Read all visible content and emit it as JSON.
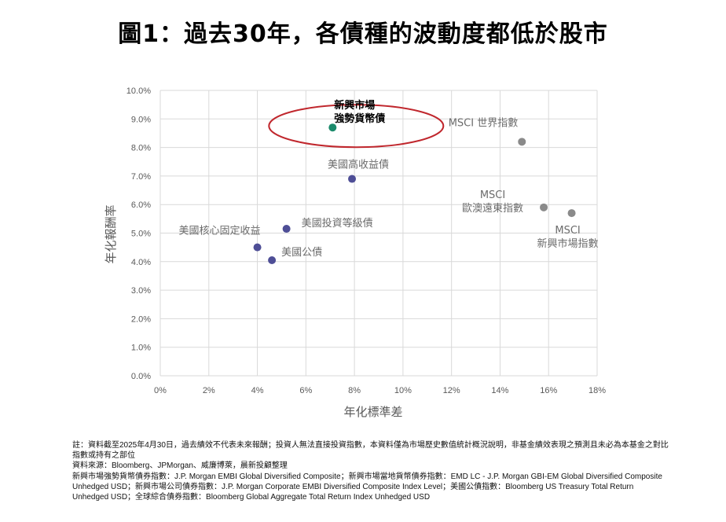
{
  "title": "圖1：過去30年，各債種的波動度都低於股市",
  "chart_data": {
    "type": "scatter",
    "xlabel": "年化標準差",
    "ylabel": "年化報酬率",
    "xlim": [
      0,
      18
    ],
    "ylim": [
      0,
      10
    ],
    "x_ticks": [
      "0%",
      "2%",
      "4%",
      "6%",
      "8%",
      "10%",
      "12%",
      "14%",
      "16%",
      "18%"
    ],
    "y_ticks": [
      "0.0%",
      "1.0%",
      "2.0%",
      "3.0%",
      "4.0%",
      "5.0%",
      "6.0%",
      "7.0%",
      "8.0%",
      "9.0%",
      "10.0%"
    ],
    "grid": true,
    "colors": {
      "featured": "#1b8a6b",
      "bond": "#4e4e96",
      "equity": "#8a8a8a",
      "highlight": "#c0272d",
      "grid": "#d9d9d9"
    },
    "points": [
      {
        "label": [
          "新興市場",
          "強勢貨幣債"
        ],
        "x": 7.1,
        "y": 8.7,
        "group": "featured"
      },
      {
        "label": [
          "美國高收益債"
        ],
        "x": 7.9,
        "y": 6.9,
        "group": "bond"
      },
      {
        "label": [
          "美國投資等級債"
        ],
        "x": 5.2,
        "y": 5.15,
        "group": "bond"
      },
      {
        "label": [
          "美國核心固定收益"
        ],
        "x": 4.0,
        "y": 4.5,
        "group": "bond"
      },
      {
        "label": [
          "美國公債"
        ],
        "x": 4.6,
        "y": 4.05,
        "group": "bond"
      },
      {
        "label": [
          "MSCI 世界指數"
        ],
        "x": 14.9,
        "y": 8.2,
        "group": "equity"
      },
      {
        "label": [
          "MSCI",
          "歐澳遠東指數"
        ],
        "x": 15.8,
        "y": 5.9,
        "group": "equity"
      },
      {
        "label": [
          "MSCI",
          "新興市場指數"
        ],
        "x": 16.95,
        "y": 5.7,
        "group": "equity"
      }
    ]
  },
  "notes": [
    "註：資料截至2025年4月30日，過去績效不代表未來報酬；投資人無法直接投資指數，本資料僅為市場歷史數值統計概況說明，非基金績效表現之預測且未必為本基金之對比指數或持有之部位",
    "資料來源：Bloomberg、JPMorgan、威廉博萊，晨新投顧整理",
    "新興市場強勢貨幣債券指數：J.P. Morgan EMBI Global Diversified Composite；新興市場當地貨幣債券指數：EMD LC - J.P. Morgan GBI-EM Global Diversified Composite Unhedged USD；新興市場公司債券指數：J.P. Morgan Corporate EMBI Diversified Composite Index Level；美國公債指數：Bloomberg US Treasury Total Return Unhedged USD；全球綜合債券指數：Bloomberg Global Aggregate Total Return Index Unhedged USD"
  ]
}
